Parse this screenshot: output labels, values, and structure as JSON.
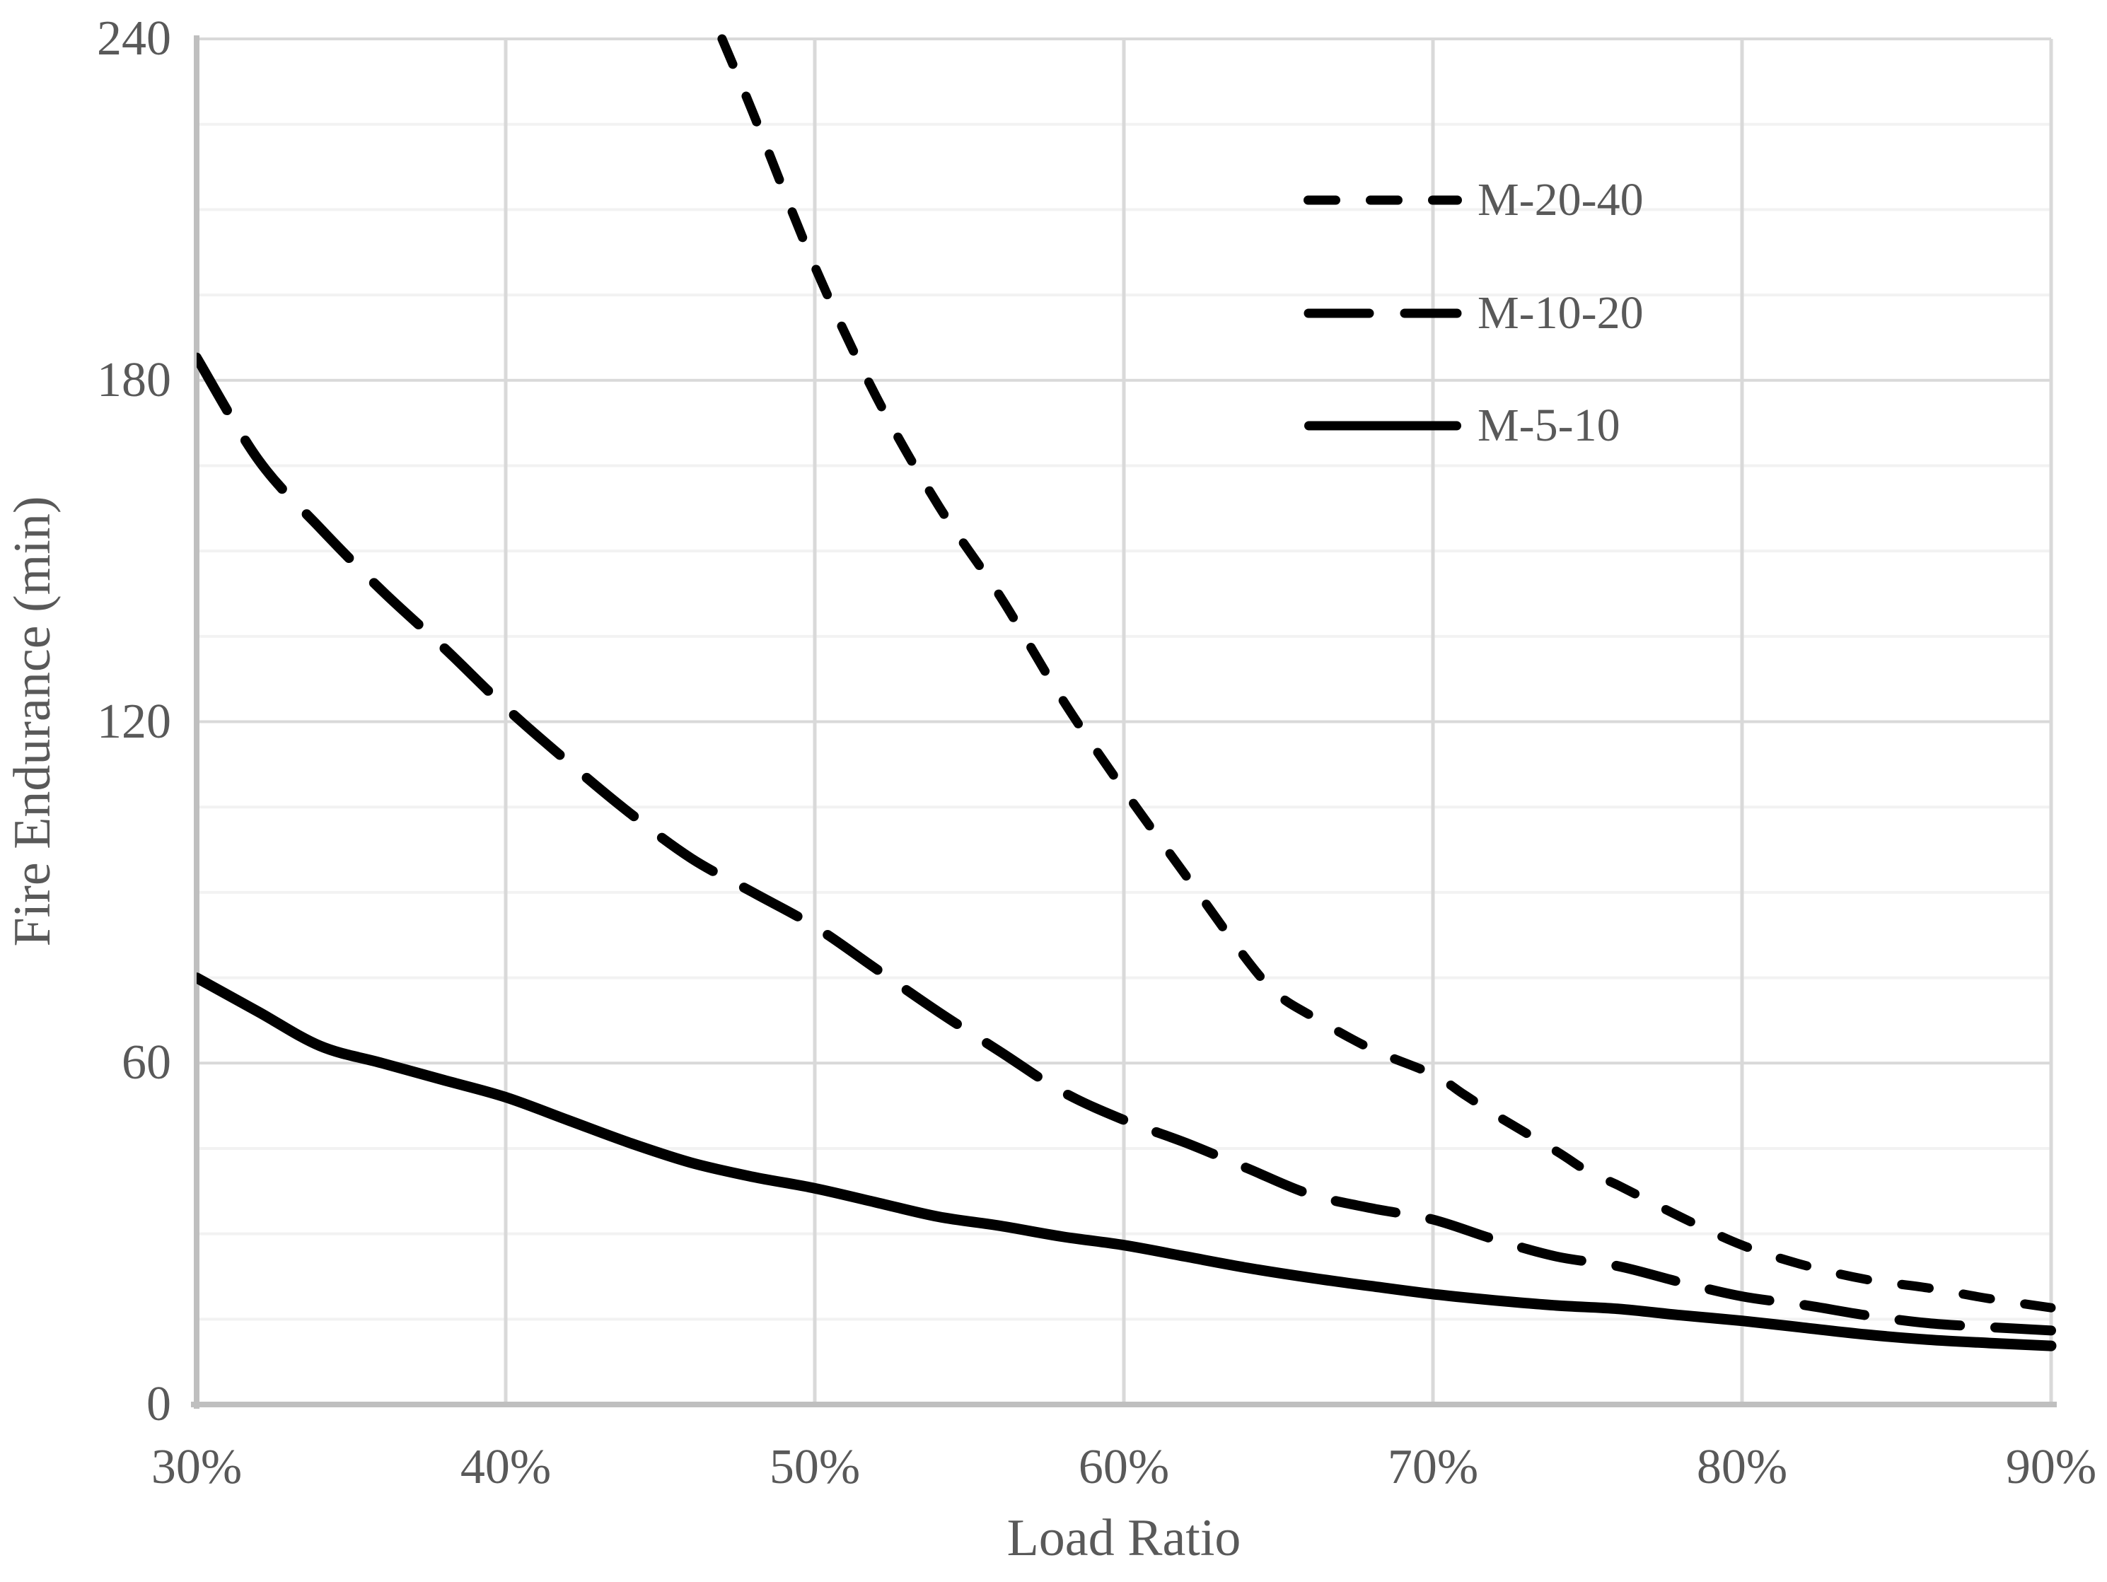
{
  "chart_data": {
    "type": "line",
    "title": "",
    "xlabel": "Load Ratio",
    "ylabel": "Fire Endurance (min)",
    "xlim": [
      30,
      90
    ],
    "ylim": [
      0,
      240
    ],
    "x_tick_labels": [
      "30%",
      "40%",
      "50%",
      "60%",
      "70%",
      "80%",
      "90%"
    ],
    "x_tick_values": [
      30,
      40,
      50,
      60,
      70,
      80,
      90
    ],
    "y_tick_labels": [
      "0",
      "60",
      "120",
      "180",
      "240"
    ],
    "y_tick_values": [
      0,
      60,
      120,
      180,
      240
    ],
    "y_major_step": 60,
    "y_minor_step": 15,
    "grid": {
      "horizontal_major": true,
      "horizontal_minor": true,
      "vertical_major": true
    },
    "legend_position": "inside-upper-right",
    "x_unit": "percent load ratio",
    "y_unit": "minutes",
    "series": [
      {
        "name": "M-20-40",
        "line_style": "dash",
        "color": "#000000",
        "points": [
          [
            47,
            240
          ],
          [
            48,
            227
          ],
          [
            50,
            200
          ],
          [
            52,
            177
          ],
          [
            54,
            158
          ],
          [
            56,
            142
          ],
          [
            58,
            124
          ],
          [
            60,
            108
          ],
          [
            62,
            93
          ],
          [
            64,
            78
          ],
          [
            65,
            72
          ],
          [
            66,
            68.5
          ],
          [
            68,
            62.5
          ],
          [
            70,
            58
          ],
          [
            71,
            54.5
          ],
          [
            72,
            51
          ],
          [
            74,
            44.5
          ],
          [
            75,
            41
          ],
          [
            76,
            38.5
          ],
          [
            78,
            33
          ],
          [
            80,
            28
          ],
          [
            82,
            24.5
          ],
          [
            84,
            22
          ],
          [
            86,
            20.5
          ],
          [
            88,
            18.6
          ],
          [
            90,
            17
          ]
        ]
      },
      {
        "name": "M-10-20",
        "line_style": "long-dash",
        "color": "#000000",
        "points": [
          [
            30,
            184
          ],
          [
            32,
            166
          ],
          [
            34,
            154
          ],
          [
            36,
            143
          ],
          [
            38,
            133
          ],
          [
            40,
            122.5
          ],
          [
            42,
            113
          ],
          [
            44,
            104
          ],
          [
            46,
            96
          ],
          [
            48,
            90
          ],
          [
            50,
            84
          ],
          [
            52,
            76.5
          ],
          [
            54,
            69
          ],
          [
            56,
            62
          ],
          [
            58,
            55
          ],
          [
            60,
            50
          ],
          [
            62,
            46
          ],
          [
            64,
            41.5
          ],
          [
            66,
            37
          ],
          [
            68,
            34.5
          ],
          [
            70,
            32.5
          ],
          [
            72,
            29
          ],
          [
            74,
            26
          ],
          [
            76,
            24.3
          ],
          [
            78,
            21.5
          ],
          [
            80,
            19
          ],
          [
            82,
            17.5
          ],
          [
            84,
            15.7
          ],
          [
            86,
            14.3
          ],
          [
            88,
            13.6
          ],
          [
            90,
            13
          ]
        ]
      },
      {
        "name": "M-5-10",
        "line_style": "solid",
        "color": "#000000",
        "points": [
          [
            30,
            75
          ],
          [
            32,
            69
          ],
          [
            34,
            63
          ],
          [
            36,
            60
          ],
          [
            38,
            57
          ],
          [
            40,
            54
          ],
          [
            42,
            50
          ],
          [
            44,
            46
          ],
          [
            46,
            42.5
          ],
          [
            48,
            40
          ],
          [
            50,
            38
          ],
          [
            52,
            35.5
          ],
          [
            54,
            33
          ],
          [
            56,
            31.4
          ],
          [
            58,
            29.5
          ],
          [
            60,
            28
          ],
          [
            62,
            26
          ],
          [
            64,
            24
          ],
          [
            66,
            22.3
          ],
          [
            68,
            20.8
          ],
          [
            70,
            19.4
          ],
          [
            72,
            18.3
          ],
          [
            74,
            17.4
          ],
          [
            76,
            16.8
          ],
          [
            78,
            15.7
          ],
          [
            80,
            14.7
          ],
          [
            82,
            13.5
          ],
          [
            84,
            12.3
          ],
          [
            86,
            11.4
          ],
          [
            88,
            10.8
          ],
          [
            90,
            10.3
          ]
        ]
      }
    ],
    "colors": {
      "text": "#595959",
      "axis_line": "#BFBFBF",
      "grid_major": "#D9D9D9",
      "grid_minor": "#F2F2F2",
      "series_line": "#000000",
      "background": "#FFFFFF"
    }
  }
}
